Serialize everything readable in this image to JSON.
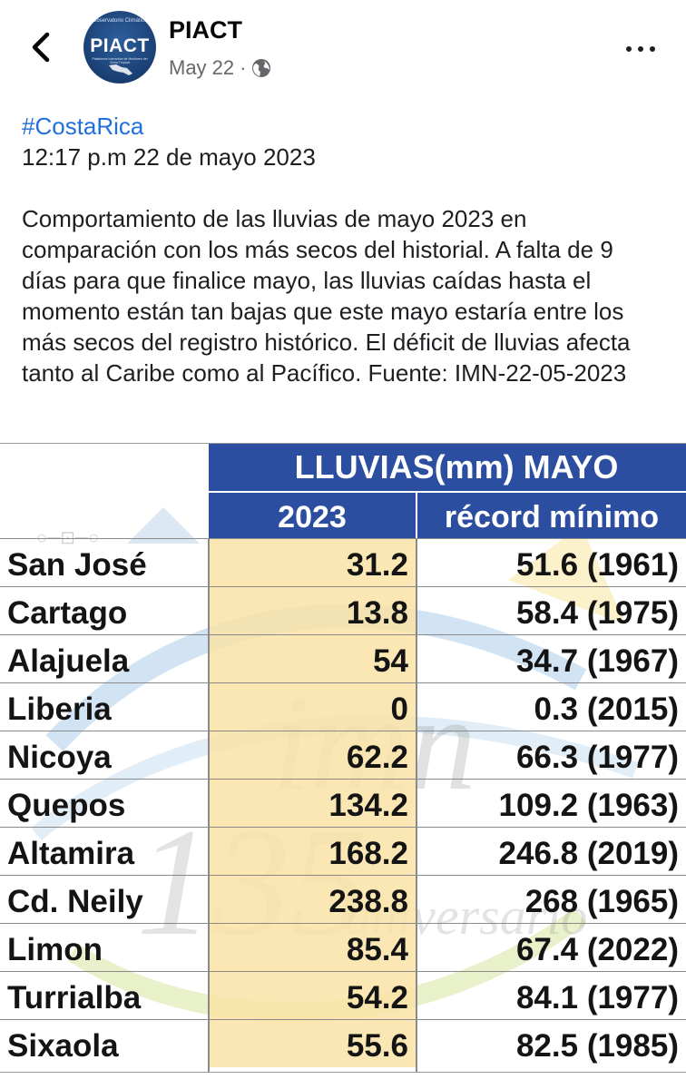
{
  "header": {
    "page_name": "PIACT",
    "date": "May 22",
    "separator": "·",
    "avatar": {
      "name": "PIACT",
      "top_text": "Observatorio Climático",
      "sub_text": "Plataforma Interactiva de Monitoreo del Clima Tropical",
      "colors": {
        "bg": "#1a3f73",
        "text": "#ffffff"
      }
    },
    "icons": [
      "back-arrow-icon",
      "globe-icon",
      "more-options-icon"
    ]
  },
  "post": {
    "hashtag": "#CostaRica",
    "timestamp_line": "12:17 p.m 22 de mayo 2023",
    "body": "Comportamiento de las lluvias de mayo 2023 en comparación con los más secos del historial. A falta de 9 días para que finalice mayo, las lluvias caídas hasta el momento están tan bajas que este mayo estaría entre los más secos del registro histórico. El déficit de lluvias afecta tanto al Caribe como al Pacífico. Fuente: IMN-22-05-2023"
  },
  "table": {
    "title": "LLUVIAS(mm) MAYO",
    "col_2023": "2023",
    "col_record": "récord mínimo",
    "rows": [
      {
        "city": "San José",
        "v2023": "31.2",
        "record": "51.6 (1961)"
      },
      {
        "city": "Cartago",
        "v2023": "13.8",
        "record": "58.4 (1975)"
      },
      {
        "city": "Alajuela",
        "v2023": "54",
        "record": "34.7 (1967)"
      },
      {
        "city": "Liberia",
        "v2023": "0",
        "record": "0.3 (2015)"
      },
      {
        "city": "Nicoya",
        "v2023": "62.2",
        "record": "66.3 (1977)"
      },
      {
        "city": "Quepos",
        "v2023": "134.2",
        "record": "109.2 (1963)"
      },
      {
        "city": "Altamira",
        "v2023": "168.2",
        "record": "246.8 (2019)"
      },
      {
        "city": "Cd. Neily",
        "v2023": "238.8",
        "record": "268 (1965)"
      },
      {
        "city": "Limon",
        "v2023": "85.4",
        "record": "67.4 (2022)"
      },
      {
        "city": "Turrialba",
        "v2023": "54.2",
        "record": "84.1 (1977)"
      },
      {
        "city": "Sixaola",
        "v2023": "55.6",
        "record": "82.5 (1985)"
      }
    ],
    "watermark": {
      "big": "135",
      "script": "aniversario",
      "brand": "imn"
    },
    "colors": {
      "header_blue": "#2c4ea0",
      "highlight": "#f9e3a6"
    }
  }
}
